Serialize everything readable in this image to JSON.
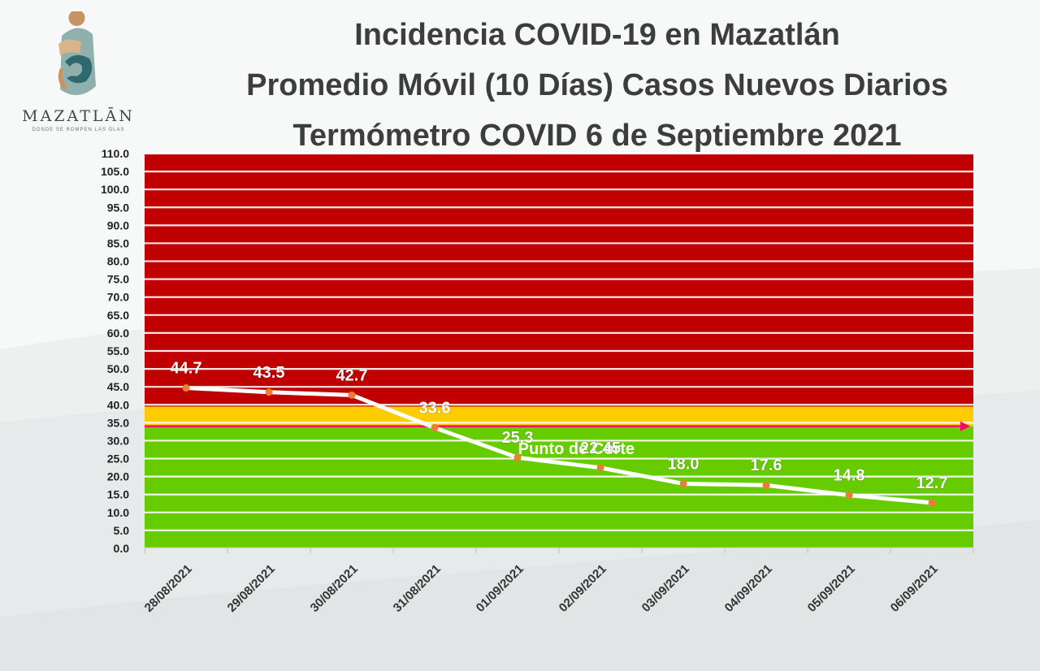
{
  "logo": {
    "name": "MAZATLĀN",
    "tagline": "DONDE SE ROMPEN LAS OLAS"
  },
  "title_lines": [
    "Incidencia COVID-19 en Mazatlán",
    "Promedio Móvil (10 Días) Casos Nuevos Diarios",
    "Termómetro COVID 6 de Septiembre 2021"
  ],
  "chart_data": {
    "type": "line",
    "title": "Incidencia COVID-19 en Mazatlán Promedio Móvil (10 Días) Casos Nuevos Diarios Termómetro COVID 6 de Septiembre 2021",
    "xlabel": "",
    "ylabel": "",
    "categories": [
      "28/08/2021",
      "29/08/2021",
      "30/08/2021",
      "31/08/2021",
      "01/09/2021",
      "02/09/2021",
      "03/09/2021",
      "04/09/2021",
      "05/09/2021",
      "06/09/2021"
    ],
    "series": [
      {
        "values": [
          44.7,
          43.5,
          42.7,
          33.6,
          25.3,
          22.45,
          18.0,
          17.6,
          14.8,
          12.7
        ],
        "labels": [
          "44.7",
          "43.5",
          "42.7",
          "33.6",
          "25.3",
          "22.45",
          "18.0",
          "17.6",
          "14.8",
          "12.7"
        ]
      }
    ],
    "ylim": [
      0,
      110
    ],
    "yticks": [
      "0.0",
      "5.0",
      "10.0",
      "15.0",
      "20.0",
      "25.0",
      "30.0",
      "35.0",
      "40.0",
      "45.0",
      "50.0",
      "55.0",
      "60.0",
      "65.0",
      "70.0",
      "75.0",
      "80.0",
      "85.0",
      "90.0",
      "95.0",
      "100.0",
      "105.0",
      "110.0"
    ],
    "grid": true,
    "bands": [
      {
        "from": 0,
        "to": 34,
        "color": "#66cc00"
      },
      {
        "from": 34,
        "to": 39.5,
        "color": "#ffcc00"
      },
      {
        "from": 39.5,
        "to": 110,
        "color": "#c00000"
      }
    ],
    "cutoff": {
      "label": "Punto de Corte",
      "value": 34,
      "color": "#ff0066"
    },
    "colors": {
      "line": "#ffffff",
      "marker": "#ed7d31"
    }
  }
}
